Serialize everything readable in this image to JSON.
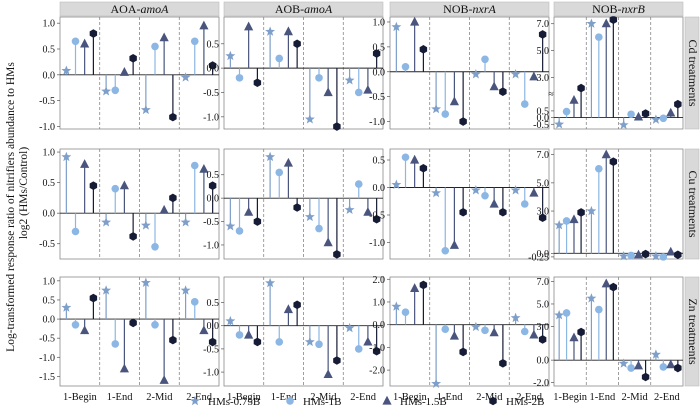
{
  "figure": {
    "ylabel_line1": "Log-transformed  response ratio of nitrifiers abundance to HMs",
    "ylabel_line2": "log2 (HMs/Control)",
    "xticks": [
      "1-Begin",
      "1-End",
      "2-Mid",
      "2-End"
    ]
  },
  "columns": [
    {
      "prefix": "AOA-",
      "gene": "amoA"
    },
    {
      "prefix": "AOB-",
      "gene": "amoA"
    },
    {
      "prefix": "NOB-",
      "gene": "nxrA"
    },
    {
      "prefix": "NOB-",
      "gene": "nxrB"
    }
  ],
  "rows": [
    "Cd treatments",
    "Cu treatments",
    "Zn treatments"
  ],
  "legend": [
    {
      "label": "HMs-0.75B",
      "marker": "star-icon",
      "color": "#7e9fc9"
    },
    {
      "label": "HMs-1B",
      "marker": "circle-icon",
      "color": "#8cb6e4"
    },
    {
      "label": "HMs-1.5B",
      "marker": "triangle-icon",
      "color": "#4a557e"
    },
    {
      "label": "HMs-2B",
      "marker": "hexagon-icon",
      "color": "#161c36"
    }
  ],
  "chart_data": [
    {
      "type": "lollipop",
      "row": "Cd treatments",
      "column": "AOA-amoA",
      "ylim": [
        -1.05,
        1.12
      ],
      "yticks": [
        "1.0",
        "0.5",
        "0.0",
        "-0.5",
        "-1.0"
      ],
      "ytick_values": [
        1.0,
        0.5,
        0.0,
        -0.5,
        -1.0
      ],
      "categories": [
        "1-Begin",
        "1-End",
        "2-Mid",
        "2-End"
      ],
      "series": [
        {
          "name": "HMs-0.75B",
          "values": [
            0.08,
            -0.32,
            -0.68,
            -0.05
          ]
        },
        {
          "name": "HMs-1B",
          "values": [
            0.65,
            -0.3,
            0.55,
            0.65
          ]
        },
        {
          "name": "HMs-1.5B",
          "values": [
            0.6,
            0.05,
            0.72,
            0.95
          ]
        },
        {
          "name": "HMs-2B",
          "values": [
            0.8,
            0.32,
            -0.82,
            0.18
          ]
        }
      ]
    },
    {
      "type": "lollipop",
      "row": "Cd treatments",
      "column": "AOB-amoA",
      "ylim": [
        -1.25,
        1.05
      ],
      "yticks": [
        "0.5",
        "0.0",
        "-0.5",
        "-1.0"
      ],
      "ytick_values": [
        0.5,
        0.0,
        -0.5,
        -1.0
      ],
      "categories": [
        "1-Begin",
        "1-End",
        "2-Mid",
        "2-End"
      ],
      "series": [
        {
          "name": "HMs-0.75B",
          "values": [
            0.25,
            0.75,
            -1.05,
            -0.25
          ]
        },
        {
          "name": "HMs-1B",
          "values": [
            -0.2,
            0.2,
            -0.2,
            -0.5
          ]
        },
        {
          "name": "HMs-1.5B",
          "values": [
            0.85,
            0.75,
            -0.5,
            -0.45
          ]
        },
        {
          "name": "HMs-2B",
          "values": [
            -0.3,
            0.5,
            -1.2,
            0.3
          ]
        }
      ]
    },
    {
      "type": "lollipop",
      "row": "Cd treatments",
      "column": "NOB-nxrA",
      "ylim": [
        -1.15,
        1.1
      ],
      "yticks": [
        "1.0",
        "0.5",
        "0.0",
        "-0.5",
        "-1.0"
      ],
      "ytick_values": [
        1.0,
        0.5,
        0.0,
        -0.5,
        -1.0
      ],
      "categories": [
        "1-Begin",
        "1-End",
        "2-Mid",
        "2-End"
      ],
      "series": [
        {
          "name": "HMs-0.75B",
          "values": [
            0.9,
            -0.75,
            -0.05,
            -0.05
          ]
        },
        {
          "name": "HMs-1B",
          "values": [
            0.1,
            -0.85,
            0.25,
            -0.65
          ]
        },
        {
          "name": "HMs-1.5B",
          "values": [
            1.0,
            -0.6,
            -0.3,
            -0.1
          ]
        },
        {
          "name": "HMs-2B",
          "values": [
            0.45,
            -1.0,
            -0.4,
            0.75
          ]
        }
      ]
    },
    {
      "type": "lollipop",
      "row": "Cd treatments",
      "column": "NOB-nxrB",
      "ylim": [
        -0.85,
        7.5
      ],
      "yticks": [
        "7.0",
        "5.0",
        "3.0",
        "0.5",
        "0.0",
        "-0.5"
      ],
      "ytick_values": [
        7.0,
        5.0,
        3.0,
        0.5,
        0.0,
        -0.5
      ],
      "axis_break": "between 0.5 and 3.0",
      "categories": [
        "1-Begin",
        "1-End",
        "2-Mid",
        "2-End"
      ],
      "series": [
        {
          "name": "HMs-0.75B",
          "values": [
            -0.5,
            7.0,
            -0.55,
            -0.15
          ]
        },
        {
          "name": "HMs-1B",
          "values": [
            0.45,
            6.0,
            0.25,
            -0.05
          ]
        },
        {
          "name": "HMs-1.5B",
          "values": [
            1.3,
            7.0,
            0.05,
            0.35
          ]
        },
        {
          "name": "HMs-2B",
          "values": [
            2.2,
            7.3,
            0.3,
            1.0
          ]
        }
      ]
    },
    {
      "type": "lollipop",
      "row": "Cu treatments",
      "column": "AOA-amoA",
      "ylim": [
        -0.75,
        1.05
      ],
      "yticks": [
        "1.0",
        "0.5",
        "0.0",
        "-0.5"
      ],
      "ytick_values": [
        1.0,
        0.5,
        0.0,
        -0.5
      ],
      "categories": [
        "1-Begin",
        "1-End",
        "2-Mid",
        "2-End"
      ],
      "series": [
        {
          "name": "HMs-0.75B",
          "values": [
            0.92,
            -0.15,
            -0.2,
            -0.15
          ]
        },
        {
          "name": "HMs-1B",
          "values": [
            -0.3,
            0.4,
            -0.55,
            0.78
          ]
        },
        {
          "name": "HMs-1.5B",
          "values": [
            0.8,
            0.45,
            0.05,
            0.72
          ]
        },
        {
          "name": "HMs-2B",
          "values": [
            0.45,
            -0.38,
            0.25,
            0.45
          ]
        }
      ]
    },
    {
      "type": "lollipop",
      "row": "Cu treatments",
      "column": "AOB-amoA",
      "ylim": [
        -1.3,
        1.05
      ],
      "yticks": [
        "0.5",
        "0.0",
        "-0.5",
        "-1.0"
      ],
      "ytick_values": [
        0.5,
        0.0,
        -0.5,
        -1.0
      ],
      "categories": [
        "1-Begin",
        "1-End",
        "2-Mid",
        "2-End"
      ],
      "series": [
        {
          "name": "HMs-0.75B",
          "values": [
            -0.6,
            0.88,
            -0.4,
            -0.25
          ]
        },
        {
          "name": "HMs-1B",
          "values": [
            -0.7,
            0.55,
            -0.65,
            0.3
          ]
        },
        {
          "name": "HMs-1.5B",
          "values": [
            -0.3,
            0.75,
            -0.95,
            -0.3
          ]
        },
        {
          "name": "HMs-2B",
          "values": [
            -0.5,
            -0.2,
            -1.2,
            -0.45
          ]
        }
      ]
    },
    {
      "type": "lollipop",
      "row": "Cu treatments",
      "column": "NOB-nxrA",
      "ylim": [
        -1.3,
        0.7
      ],
      "yticks": [
        "0.5",
        "0.0",
        "-0.5",
        "-1.0"
      ],
      "ytick_values": [
        0.5,
        0.0,
        -0.5,
        -1.0
      ],
      "categories": [
        "1-Begin",
        "1-End",
        "2-Mid",
        "2-End"
      ],
      "series": [
        {
          "name": "HMs-0.75B",
          "values": [
            0.05,
            -0.1,
            -0.05,
            -0.05
          ]
        },
        {
          "name": "HMs-1B",
          "values": [
            0.55,
            -1.15,
            -0.15,
            -0.3
          ]
        },
        {
          "name": "HMs-1.5B",
          "values": [
            0.5,
            -1.05,
            -0.3,
            -0.1
          ]
        },
        {
          "name": "HMs-2B",
          "values": [
            0.35,
            -0.45,
            -0.45,
            -0.55
          ]
        }
      ]
    },
    {
      "type": "lollipop",
      "row": "Cu treatments",
      "column": "NOB-nxrB",
      "ylim": [
        -0.4,
        7.4
      ],
      "yticks": [
        "7.0",
        "5.0",
        "3.0",
        "0.0",
        "-0.25"
      ],
      "ytick_values": [
        7.0,
        5.0,
        3.0,
        0.0,
        -0.25
      ],
      "categories": [
        "1-Begin",
        "1-End",
        "2-Mid",
        "2-End"
      ],
      "series": [
        {
          "name": "HMs-0.75B",
          "values": [
            2.0,
            3.0,
            -0.2,
            -0.2
          ]
        },
        {
          "name": "HMs-1B",
          "values": [
            2.3,
            6.0,
            -0.15,
            -0.25
          ]
        },
        {
          "name": "HMs-1.5B",
          "values": [
            2.4,
            7.0,
            -0.1,
            0.1
          ]
        },
        {
          "name": "HMs-2B",
          "values": [
            2.9,
            6.5,
            -0.05,
            -0.1
          ]
        }
      ]
    },
    {
      "type": "lollipop",
      "row": "Zn treatments",
      "column": "AOA-amoA",
      "ylim": [
        -1.75,
        1.1
      ],
      "yticks": [
        "1.0",
        "0.5",
        "0.0",
        "-0.5",
        "-1.0",
        "-1.5"
      ],
      "ytick_values": [
        1.0,
        0.5,
        0.0,
        -0.5,
        -1.0,
        -1.5
      ],
      "categories": [
        "1-Begin",
        "1-End",
        "2-Mid",
        "2-End"
      ],
      "series": [
        {
          "name": "HMs-0.75B",
          "values": [
            0.3,
            0.75,
            0.95,
            0.75
          ]
        },
        {
          "name": "HMs-1B",
          "values": [
            -0.15,
            -0.65,
            -0.15,
            0.45
          ]
        },
        {
          "name": "HMs-1.5B",
          "values": [
            -0.3,
            -1.3,
            -1.6,
            -0.3
          ]
        },
        {
          "name": "HMs-2B",
          "values": [
            0.55,
            -0.1,
            -0.55,
            -0.6
          ]
        }
      ]
    },
    {
      "type": "lollipop",
      "row": "Zn treatments",
      "column": "AOB-amoA",
      "ylim": [
        -1.3,
        1.05
      ],
      "yticks": [
        "0.5",
        "0.0",
        "-0.5",
        "-1.0"
      ],
      "ytick_values": [
        0.5,
        0.0,
        -0.5,
        -1.0
      ],
      "categories": [
        "1-Begin",
        "1-End",
        "2-Mid",
        "2-End"
      ],
      "series": [
        {
          "name": "HMs-0.75B",
          "values": [
            0.1,
            0.92,
            -0.35,
            -0.05
          ]
        },
        {
          "name": "HMs-1B",
          "values": [
            -0.2,
            -0.35,
            -0.4,
            -0.5
          ]
        },
        {
          "name": "HMs-1.5B",
          "values": [
            -0.2,
            0.35,
            -1.05,
            -0.35
          ]
        },
        {
          "name": "HMs-2B",
          "values": [
            -0.35,
            0.45,
            -0.75,
            -0.55
          ]
        }
      ]
    },
    {
      "type": "lollipop",
      "row": "Zn treatments",
      "column": "NOB-nxrA",
      "ylim": [
        -2.7,
        2.1
      ],
      "yticks": [
        "2.0",
        "1.0",
        "0.0",
        "-1.0",
        "-2.0"
      ],
      "ytick_values": [
        2.0,
        1.0,
        0.0,
        -1.0,
        -2.0
      ],
      "categories": [
        "1-Begin",
        "1-End",
        "2-Mid",
        "2-End"
      ],
      "series": [
        {
          "name": "HMs-0.75B",
          "values": [
            0.8,
            -2.6,
            -0.1,
            0.3
          ]
        },
        {
          "name": "HMs-1B",
          "values": [
            0.55,
            -0.2,
            -0.25,
            -0.3
          ]
        },
        {
          "name": "HMs-1.5B",
          "values": [
            1.6,
            -0.5,
            -0.35,
            -0.45
          ]
        },
        {
          "name": "HMs-2B",
          "values": [
            1.75,
            -1.2,
            -1.7,
            -0.65
          ]
        }
      ]
    },
    {
      "type": "lollipop",
      "row": "Zn treatments",
      "column": "NOB-nxrB",
      "ylim": [
        -2.3,
        7.4
      ],
      "yticks": [
        "7.0",
        "5.0",
        "3.0",
        "0.0",
        "-2.0"
      ],
      "ytick_values": [
        7.0,
        5.0,
        3.0,
        0.0,
        -2.0
      ],
      "categories": [
        "1-Begin",
        "1-End",
        "2-Mid",
        "2-End"
      ],
      "series": [
        {
          "name": "HMs-0.75B",
          "values": [
            4.0,
            5.5,
            -0.3,
            0.5
          ]
        },
        {
          "name": "HMs-1B",
          "values": [
            4.2,
            4.5,
            -0.7,
            -0.6
          ]
        },
        {
          "name": "HMs-1.5B",
          "values": [
            2.0,
            6.8,
            -0.5,
            -0.4
          ]
        },
        {
          "name": "HMs-2B",
          "values": [
            2.5,
            6.5,
            -1.5,
            -0.7
          ]
        }
      ]
    }
  ]
}
